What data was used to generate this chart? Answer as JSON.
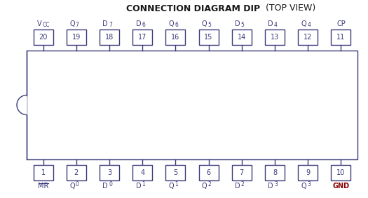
{
  "title_bold": "CONNECTION DIAGRAM DIP",
  "title_normal": " (TOP VIEW)",
  "bg_color": "#ffffff",
  "pin_color": "#3a3a7a",
  "box_edge_color": "#3a3a7a",
  "gnd_color": "#8B0000",
  "top_pins": [
    {
      "num": "20",
      "label": "V",
      "label_sub": "CC",
      "sub_baseline": true
    },
    {
      "num": "19",
      "label": "Q",
      "label_sub": "7"
    },
    {
      "num": "18",
      "label": "D",
      "label_sub": "7"
    },
    {
      "num": "17",
      "label": "D",
      "label_sub": "6"
    },
    {
      "num": "16",
      "label": "Q",
      "label_sub": "6"
    },
    {
      "num": "15",
      "label": "Q",
      "label_sub": "5"
    },
    {
      "num": "14",
      "label": "D",
      "label_sub": "5"
    },
    {
      "num": "13",
      "label": "D",
      "label_sub": "4"
    },
    {
      "num": "12",
      "label": "Q",
      "label_sub": "4"
    },
    {
      "num": "11",
      "label": "CP",
      "label_sub": ""
    }
  ],
  "bottom_pins": [
    {
      "num": "1",
      "label": "MR",
      "label_sub": "",
      "overline": true
    },
    {
      "num": "2",
      "label": "Q",
      "label_sub": "0"
    },
    {
      "num": "3",
      "label": "D",
      "label_sub": "0"
    },
    {
      "num": "4",
      "label": "D",
      "label_sub": "1"
    },
    {
      "num": "5",
      "label": "Q",
      "label_sub": "1"
    },
    {
      "num": "6",
      "label": "Q",
      "label_sub": "2"
    },
    {
      "num": "7",
      "label": "D",
      "label_sub": "2"
    },
    {
      "num": "8",
      "label": "D",
      "label_sub": "3"
    },
    {
      "num": "9",
      "label": "Q",
      "label_sub": "3"
    },
    {
      "num": "10",
      "label": "GND",
      "label_sub": "",
      "bold": true,
      "red": true
    }
  ]
}
